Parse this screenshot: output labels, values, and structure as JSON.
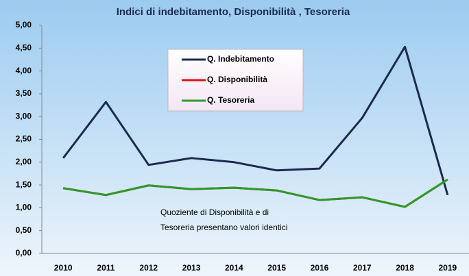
{
  "chart_data": {
    "type": "line",
    "title": "Indici di indebitamento, Disponibilità , Tesoreria",
    "categories": [
      "2010",
      "2011",
      "2012",
      "2013",
      "2014",
      "2015",
      "2016",
      "2017",
      "2018",
      "2019"
    ],
    "series": [
      {
        "name": "Q. Indebitamento",
        "color": "#1b2a4c",
        "values": [
          2.09,
          3.32,
          1.94,
          2.09,
          2.0,
          1.82,
          1.86,
          2.97,
          4.53,
          1.28
        ]
      },
      {
        "name": "Q. Disponibilità",
        "color": "#e0101a",
        "values": [
          1.43,
          1.28,
          1.49,
          1.41,
          1.44,
          1.38,
          1.17,
          1.23,
          1.02,
          1.62
        ]
      },
      {
        "name": "Q. Tesoreria",
        "color": "#2e9a2a",
        "values": [
          1.43,
          1.28,
          1.49,
          1.41,
          1.44,
          1.38,
          1.17,
          1.23,
          1.02,
          1.62
        ]
      }
    ],
    "ylim": [
      0,
      5
    ],
    "yticks": [
      {
        "value": 0,
        "label": "0,00"
      },
      {
        "value": 0.5,
        "label": "0,50"
      },
      {
        "value": 1,
        "label": "1,00"
      },
      {
        "value": 1.5,
        "label": "1,50"
      },
      {
        "value": 2,
        "label": "2,00"
      },
      {
        "value": 2.5,
        "label": "2,50"
      },
      {
        "value": 3,
        "label": "3,00"
      },
      {
        "value": 3.5,
        "label": "3,50"
      },
      {
        "value": 4,
        "label": "4,00"
      },
      {
        "value": 4.5,
        "label": "4,50"
      },
      {
        "value": 5,
        "label": "5,00"
      }
    ],
    "grid": false,
    "legend": "upper center",
    "annotation": [
      "Quoziente di Disponibilità e di",
      "Tesoreria presentano valori identici"
    ]
  }
}
